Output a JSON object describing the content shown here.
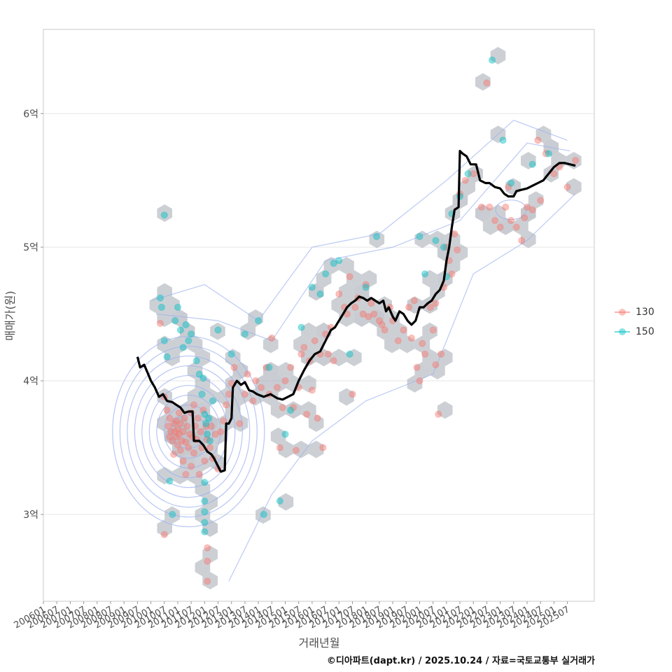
{
  "chart_data": {
    "type": "scatter",
    "title": "",
    "xlabel": "거래년월",
    "ylabel": "매매가(원)",
    "x_range": [
      2006.0,
      2026.5
    ],
    "ylim": [
      2.35,
      6.63
    ],
    "y_ticks": [
      {
        "value": 3,
        "label": "3억"
      },
      {
        "value": 4,
        "label": "4억"
      },
      {
        "value": 5,
        "label": "5억"
      },
      {
        "value": 6,
        "label": "6억"
      }
    ],
    "x_ticks": [
      "200601",
      "200607",
      "200701",
      "200707",
      "200801",
      "200807",
      "200901",
      "200907",
      "201001",
      "201007",
      "201101",
      "201107",
      "201201",
      "201207",
      "201301",
      "201307",
      "201401",
      "201407",
      "201501",
      "201507",
      "201601",
      "201607",
      "201701",
      "201707",
      "201801",
      "201807",
      "201901",
      "201907",
      "202001",
      "202007",
      "202101",
      "202107",
      "202201",
      "202207",
      "202301",
      "202307",
      "202401",
      "202407",
      "202501",
      "202507"
    ],
    "legend": {
      "position": "right",
      "entries": [
        {
          "name": "130",
          "color": "#F8766D"
        },
        {
          "name": "150",
          "color": "#00BFC4"
        }
      ]
    },
    "series": [
      {
        "name": "130",
        "color": "#F8766D",
        "points": [
          [
            2010.35,
            4.43
          ],
          [
            2010.5,
            2.85
          ],
          [
            2010.5,
            3.88
          ],
          [
            2010.6,
            3.78
          ],
          [
            2010.65,
            3.66
          ],
          [
            2010.7,
            3.58
          ],
          [
            2010.7,
            3.72
          ],
          [
            2010.75,
            3.62
          ],
          [
            2010.8,
            3.55
          ],
          [
            2010.85,
            3.68
          ],
          [
            2010.85,
            3.45
          ],
          [
            2010.9,
            3.62
          ],
          [
            2010.95,
            3.7
          ],
          [
            2010.95,
            3.58
          ],
          [
            2011.0,
            3.52
          ],
          [
            2011.0,
            3.64
          ],
          [
            2011.05,
            3.76
          ],
          [
            2011.05,
            3.6
          ],
          [
            2011.1,
            3.48
          ],
          [
            2011.1,
            3.68
          ],
          [
            2011.15,
            3.55
          ],
          [
            2011.2,
            3.62
          ],
          [
            2011.2,
            3.4
          ],
          [
            2011.25,
            3.72
          ],
          [
            2011.3,
            3.54
          ],
          [
            2011.3,
            3.3
          ],
          [
            2011.35,
            3.66
          ],
          [
            2011.4,
            3.5
          ],
          [
            2011.45,
            3.6
          ],
          [
            2011.5,
            3.76
          ],
          [
            2011.5,
            3.36
          ],
          [
            2011.55,
            3.58
          ],
          [
            2011.6,
            3.82
          ],
          [
            2011.6,
            3.46
          ],
          [
            2011.65,
            3.66
          ],
          [
            2011.7,
            3.56
          ],
          [
            2011.75,
            3.72
          ],
          [
            2011.8,
            3.3
          ],
          [
            2011.85,
            3.62
          ],
          [
            2011.9,
            3.5
          ],
          [
            2011.95,
            3.78
          ],
          [
            2012.0,
            3.4
          ],
          [
            2012.05,
            3.66
          ],
          [
            2012.1,
            3.56
          ],
          [
            2012.1,
            2.75
          ],
          [
            2012.1,
            2.65
          ],
          [
            2012.1,
            2.5
          ],
          [
            2012.2,
            3.5
          ],
          [
            2012.25,
            3.66
          ],
          [
            2012.3,
            3.42
          ],
          [
            2012.4,
            3.6
          ],
          [
            2012.5,
            3.34
          ],
          [
            2012.6,
            3.62
          ],
          [
            2012.7,
            3.7
          ],
          [
            2012.8,
            3.82
          ],
          [
            2012.9,
            3.9
          ],
          [
            2013.0,
            3.98
          ],
          [
            2013.1,
            4.1
          ],
          [
            2013.3,
            3.68
          ],
          [
            2013.5,
            3.9
          ],
          [
            2013.6,
            4.05
          ],
          [
            2013.8,
            3.85
          ],
          [
            2013.9,
            4.0
          ],
          [
            2014.1,
            3.95
          ],
          [
            2014.3,
            4.1
          ],
          [
            2014.4,
            3.9
          ],
          [
            2014.5,
            4.32
          ],
          [
            2014.7,
            3.95
          ],
          [
            2014.8,
            3.5
          ],
          [
            2014.9,
            3.8
          ],
          [
            2015.0,
            4.0
          ],
          [
            2015.2,
            4.1
          ],
          [
            2015.3,
            3.8
          ],
          [
            2015.4,
            3.48
          ],
          [
            2015.5,
            3.95
          ],
          [
            2015.6,
            4.2
          ],
          [
            2015.7,
            4.25
          ],
          [
            2015.8,
            3.75
          ],
          [
            2015.9,
            4.15
          ],
          [
            2016.0,
            3.93
          ],
          [
            2016.1,
            4.3
          ],
          [
            2016.2,
            3.72
          ],
          [
            2016.3,
            4.2
          ],
          [
            2016.4,
            3.5
          ],
          [
            2016.5,
            4.35
          ],
          [
            2016.6,
            4.2
          ],
          [
            2016.7,
            4.4
          ],
          [
            2016.8,
            4.15
          ],
          [
            2017.0,
            4.65
          ],
          [
            2017.2,
            4.55
          ],
          [
            2017.3,
            4.5
          ],
          [
            2017.4,
            4.78
          ],
          [
            2017.5,
            3.9
          ],
          [
            2017.6,
            4.55
          ],
          [
            2017.7,
            4.62
          ],
          [
            2017.9,
            4.5
          ],
          [
            2018.0,
            4.72
          ],
          [
            2018.1,
            4.48
          ],
          [
            2018.2,
            4.58
          ],
          [
            2018.3,
            4.5
          ],
          [
            2018.5,
            4.45
          ],
          [
            2018.6,
            4.42
          ],
          [
            2018.7,
            4.38
          ],
          [
            2018.9,
            4.55
          ],
          [
            2019.0,
            4.45
          ],
          [
            2019.2,
            4.3
          ],
          [
            2019.4,
            4.38
          ],
          [
            2019.6,
            4.55
          ],
          [
            2019.7,
            4.32
          ],
          [
            2019.8,
            4.6
          ],
          [
            2019.9,
            4.1
          ],
          [
            2020.0,
            4.0
          ],
          [
            2020.1,
            4.28
          ],
          [
            2020.2,
            4.2
          ],
          [
            2020.4,
            4.55
          ],
          [
            2020.5,
            4.38
          ],
          [
            2020.6,
            4.12
          ],
          [
            2020.6,
            4.58
          ],
          [
            2020.7,
            3.75
          ],
          [
            2020.8,
            4.2
          ],
          [
            2020.9,
            4.7
          ],
          [
            2021.0,
            5.0
          ],
          [
            2021.1,
            4.9
          ],
          [
            2021.2,
            4.8
          ],
          [
            2021.3,
            5.1
          ],
          [
            2021.4,
            4.98
          ],
          [
            2021.5,
            5.4
          ],
          [
            2021.7,
            5.5
          ],
          [
            2022.0,
            5.55
          ],
          [
            2022.3,
            5.3
          ],
          [
            2022.5,
            6.23
          ],
          [
            2022.6,
            5.3
          ],
          [
            2022.8,
            5.2
          ],
          [
            2023.0,
            5.15
          ],
          [
            2023.2,
            5.3
          ],
          [
            2023.3,
            5.45
          ],
          [
            2023.4,
            5.2
          ],
          [
            2023.6,
            5.15
          ],
          [
            2023.8,
            5.05
          ],
          [
            2023.9,
            5.22
          ],
          [
            2024.0,
            5.3
          ],
          [
            2024.2,
            5.28
          ],
          [
            2024.4,
            5.8
          ],
          [
            2024.5,
            5.35
          ],
          [
            2024.7,
            5.7
          ],
          [
            2025.0,
            5.55
          ],
          [
            2025.2,
            5.6
          ],
          [
            2025.5,
            5.45
          ],
          [
            2025.8,
            5.65
          ]
        ]
      },
      {
        "name": "150",
        "color": "#00BFC4",
        "points": [
          [
            2010.35,
            4.62
          ],
          [
            2010.4,
            4.55
          ],
          [
            2010.5,
            4.3
          ],
          [
            2010.5,
            5.24
          ],
          [
            2010.6,
            4.18
          ],
          [
            2010.7,
            3.25
          ],
          [
            2010.8,
            3.0
          ],
          [
            2010.9,
            4.45
          ],
          [
            2011.0,
            4.55
          ],
          [
            2011.1,
            4.38
          ],
          [
            2011.2,
            4.25
          ],
          [
            2011.3,
            4.42
          ],
          [
            2011.4,
            4.3
          ],
          [
            2011.5,
            4.35
          ],
          [
            2011.7,
            4.15
          ],
          [
            2011.8,
            4.05
          ],
          [
            2011.9,
            3.9
          ],
          [
            2011.95,
            4.02
          ],
          [
            2012.0,
            3.75
          ],
          [
            2012.05,
            3.68
          ],
          [
            2012.1,
            3.6
          ],
          [
            2012.15,
            3.72
          ],
          [
            2012.2,
            3.55
          ],
          [
            2012.3,
            3.85
          ],
          [
            2012.0,
            3.24
          ],
          [
            2012.0,
            3.1
          ],
          [
            2012.0,
            3.02
          ],
          [
            2012.0,
            2.94
          ],
          [
            2012.0,
            2.87
          ],
          [
            2012.5,
            4.38
          ],
          [
            2013.0,
            4.2
          ],
          [
            2013.5,
            4.35
          ],
          [
            2014.0,
            4.45
          ],
          [
            2014.2,
            3.0
          ],
          [
            2014.4,
            4.1
          ],
          [
            2014.8,
            3.1
          ],
          [
            2015.0,
            3.6
          ],
          [
            2015.2,
            3.78
          ],
          [
            2015.6,
            4.4
          ],
          [
            2016.0,
            4.7
          ],
          [
            2016.3,
            4.65
          ],
          [
            2016.5,
            4.8
          ],
          [
            2016.8,
            4.88
          ],
          [
            2017.0,
            4.9
          ],
          [
            2017.4,
            4.2
          ],
          [
            2018.0,
            4.7
          ],
          [
            2018.4,
            5.08
          ],
          [
            2020.0,
            5.08
          ],
          [
            2020.2,
            4.8
          ],
          [
            2020.6,
            5.05
          ],
          [
            2020.9,
            5.0
          ],
          [
            2021.0,
            4.78
          ],
          [
            2021.2,
            5.25
          ],
          [
            2021.5,
            5.38
          ],
          [
            2021.8,
            5.55
          ],
          [
            2022.7,
            6.4
          ],
          [
            2023.1,
            5.8
          ],
          [
            2023.4,
            5.48
          ],
          [
            2024.2,
            5.62
          ],
          [
            2024.8,
            5.7
          ]
        ]
      }
    ],
    "median_line": [
      [
        2009.5,
        4.18
      ],
      [
        2009.6,
        4.1
      ],
      [
        2009.75,
        4.12
      ],
      [
        2009.9,
        4.05
      ],
      [
        2010.0,
        4.0
      ],
      [
        2010.15,
        3.95
      ],
      [
        2010.3,
        3.88
      ],
      [
        2010.45,
        3.9
      ],
      [
        2010.6,
        3.85
      ],
      [
        2010.8,
        3.84
      ],
      [
        2010.95,
        3.82
      ],
      [
        2011.1,
        3.8
      ],
      [
        2011.25,
        3.76
      ],
      [
        2011.4,
        3.77
      ],
      [
        2011.55,
        3.77
      ],
      [
        2011.6,
        3.55
      ],
      [
        2011.8,
        3.55
      ],
      [
        2011.95,
        3.52
      ],
      [
        2012.1,
        3.47
      ],
      [
        2012.25,
        3.45
      ],
      [
        2012.35,
        3.42
      ],
      [
        2012.45,
        3.38
      ],
      [
        2012.6,
        3.32
      ],
      [
        2012.75,
        3.33
      ],
      [
        2012.8,
        3.68
      ],
      [
        2012.9,
        3.68
      ],
      [
        2013.0,
        3.72
      ],
      [
        2013.05,
        3.95
      ],
      [
        2013.2,
        4.0
      ],
      [
        2013.35,
        3.97
      ],
      [
        2013.5,
        3.99
      ],
      [
        2013.65,
        3.93
      ],
      [
        2013.8,
        3.92
      ],
      [
        2013.95,
        3.9
      ],
      [
        2014.2,
        3.88
      ],
      [
        2014.45,
        3.9
      ],
      [
        2014.7,
        3.87
      ],
      [
        2014.9,
        3.86
      ],
      [
        2015.1,
        3.88
      ],
      [
        2015.3,
        3.9
      ],
      [
        2015.5,
        4.0
      ],
      [
        2015.7,
        4.08
      ],
      [
        2015.9,
        4.15
      ],
      [
        2016.1,
        4.2
      ],
      [
        2016.3,
        4.22
      ],
      [
        2016.5,
        4.3
      ],
      [
        2016.7,
        4.38
      ],
      [
        2016.85,
        4.4
      ],
      [
        2017.0,
        4.45
      ],
      [
        2017.15,
        4.5
      ],
      [
        2017.3,
        4.55
      ],
      [
        2017.45,
        4.58
      ],
      [
        2017.6,
        4.6
      ],
      [
        2017.75,
        4.63
      ],
      [
        2017.9,
        4.62
      ],
      [
        2018.05,
        4.6
      ],
      [
        2018.2,
        4.62
      ],
      [
        2018.35,
        4.6
      ],
      [
        2018.5,
        4.58
      ],
      [
        2018.65,
        4.6
      ],
      [
        2018.75,
        4.52
      ],
      [
        2018.85,
        4.55
      ],
      [
        2019.0,
        4.48
      ],
      [
        2019.1,
        4.45
      ],
      [
        2019.25,
        4.52
      ],
      [
        2019.4,
        4.5
      ],
      [
        2019.55,
        4.45
      ],
      [
        2019.7,
        4.42
      ],
      [
        2019.85,
        4.45
      ],
      [
        2020.0,
        4.55
      ],
      [
        2020.15,
        4.55
      ],
      [
        2020.3,
        4.58
      ],
      [
        2020.45,
        4.6
      ],
      [
        2020.6,
        4.65
      ],
      [
        2020.75,
        4.68
      ],
      [
        2020.9,
        4.75
      ],
      [
        2021.0,
        4.9
      ],
      [
        2021.1,
        5.0
      ],
      [
        2021.2,
        5.15
      ],
      [
        2021.3,
        5.28
      ],
      [
        2021.45,
        5.3
      ],
      [
        2021.5,
        5.72
      ],
      [
        2021.6,
        5.7
      ],
      [
        2021.75,
        5.68
      ],
      [
        2021.9,
        5.62
      ],
      [
        2022.1,
        5.62
      ],
      [
        2022.25,
        5.5
      ],
      [
        2022.45,
        5.48
      ],
      [
        2022.6,
        5.48
      ],
      [
        2022.8,
        5.45
      ],
      [
        2023.0,
        5.44
      ],
      [
        2023.15,
        5.4
      ],
      [
        2023.3,
        5.38
      ],
      [
        2023.5,
        5.38
      ],
      [
        2023.6,
        5.42
      ],
      [
        2023.8,
        5.43
      ],
      [
        2024.0,
        5.44
      ],
      [
        2024.2,
        5.46
      ],
      [
        2024.4,
        5.48
      ],
      [
        2024.6,
        5.5
      ],
      [
        2024.8,
        5.55
      ],
      [
        2025.0,
        5.6
      ],
      [
        2025.2,
        5.63
      ],
      [
        2025.4,
        5.63
      ],
      [
        2025.6,
        5.62
      ],
      [
        2025.8,
        5.61
      ]
    ]
  },
  "caption": "©디아파트(dapt.kr) / 2025.10.24 / 자료=국토교통부 실거래가"
}
